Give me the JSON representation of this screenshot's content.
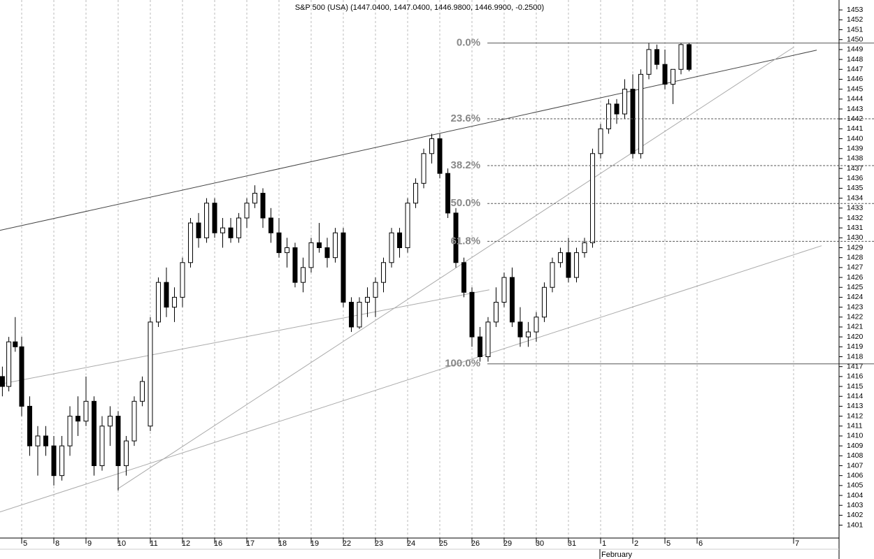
{
  "chart_data": {
    "type": "candlestick",
    "title": "S&P 500 (USA) (1447.0400, 1447.0400, 1446.9800, 1446.9900, -0.2500)",
    "x_group_label": "February",
    "up_color": "#ffffff",
    "down_color": "#000000",
    "wick_color": "#000000",
    "xlim": [
      -6.74,
      254.13
    ],
    "ylim": [
      1399.7,
      1454
    ],
    "grid": true,
    "xticks": [
      {
        "value": 0,
        "label": "5"
      },
      {
        "value": 10,
        "label": "8"
      },
      {
        "value": 20,
        "label": "9"
      },
      {
        "value": 30,
        "label": "10"
      },
      {
        "value": 40,
        "label": "11"
      },
      {
        "value": 50,
        "label": "12"
      },
      {
        "value": 60,
        "label": "16"
      },
      {
        "value": 70,
        "label": "17"
      },
      {
        "value": 80,
        "label": "18"
      },
      {
        "value": 90,
        "label": "19"
      },
      {
        "value": 100,
        "label": "22"
      },
      {
        "value": 110,
        "label": "23"
      },
      {
        "value": 120,
        "label": "24"
      },
      {
        "value": 130,
        "label": "25"
      },
      {
        "value": 140,
        "label": "26"
      },
      {
        "value": 150,
        "label": "29"
      },
      {
        "value": 160,
        "label": "30"
      },
      {
        "value": 170,
        "label": "31"
      },
      {
        "value": 180,
        "label": "1"
      },
      {
        "value": 190,
        "label": "2"
      },
      {
        "value": 200,
        "label": "5"
      },
      {
        "value": 210,
        "label": "6"
      },
      {
        "value": 240,
        "label": "7"
      }
    ],
    "yticks": [
      1401,
      1402,
      1403,
      1404,
      1405,
      1406,
      1407,
      1408,
      1409,
      1410,
      1411,
      1412,
      1413,
      1414,
      1415,
      1416,
      1417,
      1418,
      1419,
      1420,
      1421,
      1422,
      1423,
      1424,
      1425,
      1426,
      1427,
      1428,
      1429,
      1430,
      1431,
      1432,
      1433,
      1434,
      1435,
      1436,
      1437,
      1438,
      1439,
      1440,
      1441,
      1442,
      1443,
      1444,
      1445,
      1446,
      1447,
      1448,
      1449,
      1450,
      1451,
      1452,
      1453
    ],
    "x": [
      -6,
      -4,
      -2,
      0,
      2.5,
      5,
      7.5,
      10,
      12.5,
      15,
      17.5,
      20,
      22.5,
      25,
      27.5,
      30,
      32.5,
      35,
      37.5,
      40,
      42.5,
      45,
      47.5,
      50,
      52.5,
      55,
      57.5,
      60,
      62.5,
      65,
      67.5,
      70,
      72.5,
      75,
      77.5,
      80,
      82.5,
      85,
      87.5,
      90,
      92.5,
      95,
      97.5,
      100,
      102.5,
      105,
      107.5,
      110,
      112.5,
      115,
      117.5,
      120,
      122.5,
      125,
      127.5,
      130,
      132.5,
      135,
      137.5,
      140,
      142.5,
      145,
      147.5,
      150,
      152.5,
      155,
      157.5,
      160,
      162.5,
      165,
      167.5,
      170,
      172.5,
      175,
      177.5,
      180,
      182.5,
      185,
      187.5,
      190,
      192.5,
      195,
      197.5,
      200,
      202.5,
      205,
      207.5
    ],
    "open": [
      1416,
      1415,
      1419.5,
      1419,
      1413,
      1409,
      1410,
      1409,
      1406,
      1409,
      1412,
      1411.5,
      1413.5,
      1407,
      1411,
      1412,
      1407,
      1409.5,
      1413.5,
      1411,
      1421.5,
      1425.5,
      1423,
      1424,
      1427.5,
      1431.5,
      1430,
      1433.5,
      1430.5,
      1431,
      1430,
      1432,
      1433.5,
      1434.5,
      1432,
      1430.5,
      1428.5,
      1429,
      1425.5,
      1427,
      1429.5,
      1429,
      1428,
      1430.5,
      1423.5,
      1421,
      1423.5,
      1424,
      1425.5,
      1427.5,
      1430.5,
      1429,
      1433.5,
      1435.5,
      1438.5,
      1440,
      1436.5,
      1432.5,
      1427.5,
      1424.5,
      1420,
      1418,
      1421.5,
      1423.5,
      1426,
      1421.5,
      1420,
      1420.5,
      1422,
      1425,
      1427.5,
      1428.5,
      1426,
      1428.5,
      1429.5,
      1438.5,
      1441,
      1443.5,
      1442.5,
      1445,
      1438.5,
      1446.5,
      1449,
      1447.5,
      1445.5,
      1447,
      1449.5
    ],
    "high": [
      1417,
      1420,
      1422,
      1420,
      1414,
      1411,
      1411,
      1410,
      1410,
      1413,
      1414,
      1416,
      1414,
      1412,
      1413,
      1412.5,
      1410,
      1414,
      1416,
      1422,
      1426,
      1427,
      1425,
      1428,
      1432,
      1432.5,
      1434,
      1434,
      1432,
      1432,
      1432.5,
      1434,
      1435.3,
      1435,
      1433,
      1432,
      1430,
      1429.5,
      1428,
      1430,
      1431.5,
      1430,
      1431,
      1431,
      1424,
      1424,
      1425,
      1426,
      1428,
      1431,
      1431,
      1434,
      1436,
      1439,
      1440.5,
      1440.5,
      1437,
      1433,
      1428,
      1425,
      1421,
      1422,
      1425,
      1426.5,
      1427,
      1423,
      1421.5,
      1422.5,
      1425.5,
      1428,
      1429,
      1430,
      1429,
      1430,
      1439,
      1441.5,
      1444,
      1444,
      1446,
      1446.5,
      1447,
      1449.7,
      1449.5,
      1449,
      1447,
      1449.7,
      1449.7
    ],
    "low": [
      1414,
      1414.5,
      1418.5,
      1412,
      1408,
      1406,
      1408,
      1405,
      1405.5,
      1408,
      1410,
      1411,
      1406,
      1406.5,
      1409,
      1404.5,
      1406,
      1409,
      1413,
      1410.5,
      1421,
      1422,
      1421.5,
      1423,
      1427,
      1429,
      1429.5,
      1430,
      1429,
      1429.5,
      1429.5,
      1431,
      1433,
      1431,
      1429.5,
      1428,
      1427,
      1425,
      1424.5,
      1426.5,
      1428.5,
      1427,
      1427.5,
      1423,
      1420.5,
      1420.8,
      1422,
      1422,
      1424.5,
      1427,
      1428,
      1428.5,
      1433,
      1435,
      1437.5,
      1436,
      1432,
      1427,
      1424,
      1419,
      1417.5,
      1417.5,
      1421,
      1423,
      1421,
      1419,
      1419,
      1419.5,
      1421.5,
      1424.5,
      1427,
      1425.5,
      1425.5,
      1428,
      1429,
      1438,
      1440.5,
      1441.5,
      1442,
      1438,
      1438,
      1446,
      1447,
      1445,
      1443.5,
      1446.5,
      1446.8
    ],
    "close": [
      1415,
      1419.5,
      1419,
      1413,
      1409,
      1410,
      1409,
      1406,
      1409,
      1412,
      1411.5,
      1413.5,
      1407,
      1411,
      1412,
      1407,
      1409.5,
      1413.5,
      1415.5,
      1421.5,
      1425.5,
      1423,
      1424,
      1427.5,
      1431.5,
      1430,
      1433.5,
      1430.5,
      1431,
      1430,
      1432,
      1433.5,
      1434.5,
      1432,
      1430.5,
      1428.5,
      1429,
      1425.5,
      1427,
      1429.5,
      1429,
      1428,
      1430.5,
      1423.5,
      1421,
      1423.5,
      1424,
      1425.5,
      1427.5,
      1430.5,
      1429,
      1433.5,
      1435.5,
      1438.5,
      1440,
      1436.5,
      1432.5,
      1427.5,
      1424.5,
      1420,
      1418,
      1421.5,
      1423.5,
      1426,
      1421.5,
      1420,
      1420.5,
      1422,
      1425,
      1427.5,
      1428.5,
      1426,
      1428.5,
      1429.5,
      1438.5,
      1441,
      1443.5,
      1442.5,
      1445,
      1438.5,
      1446.5,
      1449,
      1447.5,
      1445.5,
      1447,
      1449.5,
      1447
    ],
    "trendlines": [
      {
        "x": [
          -6.74,
          247.2
        ],
        "values": [
          1430.75,
          1448.94
        ],
        "color": "#444444"
      },
      {
        "x": [
          -6.74,
          145.4
        ],
        "values": [
          1415.23,
          1424.75
        ],
        "color": "#aaaaaa"
      },
      {
        "x": [
          29.8,
          240.0
        ],
        "values": [
          1404.65,
          1449.23
        ],
        "color": "#aaaaaa"
      },
      {
        "x": [
          -6.74,
          248.7
        ],
        "values": [
          1402.33,
          1429.2
        ],
        "color": "#aaaaaa"
      }
    ],
    "fibonacci": {
      "x": 144.8,
      "high": 1449.65,
      "low": 1417.28,
      "color": "#555555",
      "levels": [
        {
          "value": 0,
          "label": "0.0%"
        },
        {
          "value": 23.6,
          "label": "23.6%"
        },
        {
          "value": 38.2,
          "label": "38.2%"
        },
        {
          "value": 50,
          "label": "50.0%"
        },
        {
          "value": 61.8,
          "label": "61.8%"
        },
        {
          "value": 100,
          "label": "100.0%"
        }
      ]
    }
  }
}
